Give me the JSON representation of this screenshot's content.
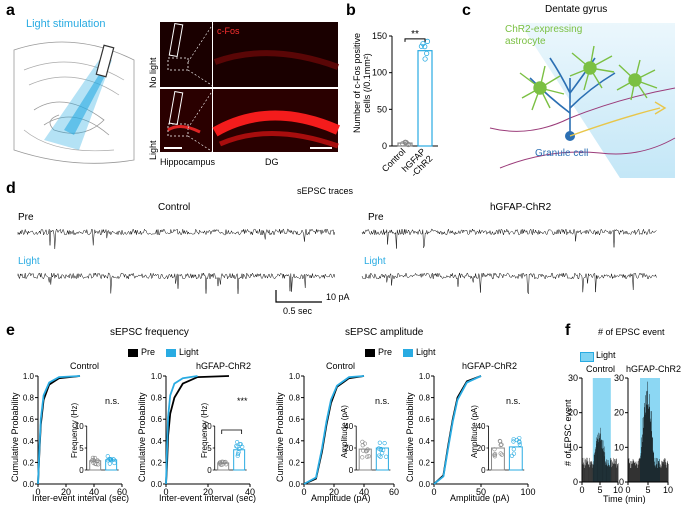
{
  "panels": {
    "a": "a",
    "b": "b",
    "c": "c",
    "d": "d",
    "e": "e",
    "f": "f"
  },
  "panel_a": {
    "stim_label": "Light stimulation",
    "row_labels": [
      "No light",
      "Light"
    ],
    "cfos_label": "c-Fos",
    "col_labels": [
      "Hippocampus",
      "DG"
    ]
  },
  "panel_c": {
    "title": "Dentate gyrus",
    "astro_label": "ChR2-expressing astrocyte",
    "granule_label": "Granule cell"
  },
  "panel_d": {
    "title": "sEPSC traces",
    "groups": [
      "Control",
      "hGFAP-ChR2"
    ],
    "pre": "Pre",
    "light": "Light",
    "scale_y": "10 pA",
    "scale_x": "0.5 sec"
  },
  "panel_e": {
    "freq_title": "sEPSC frequency",
    "amp_title": "sEPSC amplitude",
    "legend_pre": "Pre",
    "legend_light": "Light",
    "cum_ylabel": "Cumulative Probability",
    "sub_titles": [
      "Control",
      "hGFAP-ChR2",
      "Control",
      "hGFAP-ChR2"
    ],
    "freq_xlabel": "Inter-event interval (sec)",
    "amp_xlabel": "Amplitude (pA)",
    "inset_freq_ylabel": "Frequency (Hz)",
    "inset_amp_ylabel": "Amplitude (pA)",
    "sig": [
      "n.s.",
      "***",
      "n.s.",
      "n.s."
    ]
  },
  "panel_f": {
    "title": "# of EPSC event",
    "legend_light": "Light",
    "groups": [
      "Control",
      "hGFAP-ChR2"
    ],
    "ylabel": "# of EPSC event",
    "xlabel": "Time (min)"
  },
  "colors": {
    "light_blue": "#29abe2",
    "green": "#7bc043",
    "red": "#e8202a",
    "purple": "#9b3c7a"
  },
  "chart_data": [
    {
      "type": "bar",
      "id": "b",
      "categories": [
        "Control",
        "hGFAP-ChR2"
      ],
      "values": [
        4,
        130
      ],
      "ylabel": "Number of c-Fos positive cells (/0.1mm²)",
      "ylim": [
        0,
        150
      ],
      "yticks": [
        0,
        50,
        100,
        150
      ],
      "sig": "**"
    },
    {
      "type": "line",
      "id": "e1",
      "title": "Control",
      "xlim": [
        0,
        60
      ],
      "xticks": [
        0,
        20,
        40,
        60
      ],
      "ylim": [
        0,
        1
      ],
      "yticks": [
        0,
        0.2,
        0.4,
        0.6,
        0.8,
        1.0
      ],
      "series": [
        {
          "name": "Pre",
          "points": [
            [
              0,
              0
            ],
            [
              1,
              0.3
            ],
            [
              2,
              0.55
            ],
            [
              4,
              0.78
            ],
            [
              8,
              0.92
            ],
            [
              15,
              0.98
            ],
            [
              30,
              1
            ]
          ]
        },
        {
          "name": "Light",
          "points": [
            [
              0,
              0
            ],
            [
              1,
              0.33
            ],
            [
              2,
              0.6
            ],
            [
              4,
              0.82
            ],
            [
              8,
              0.94
            ],
            [
              15,
              0.99
            ],
            [
              30,
              1
            ]
          ]
        }
      ],
      "inset": {
        "ylim": [
          0,
          10
        ],
        "yticks": [
          0,
          5,
          10
        ],
        "values": [
          2.1,
          2.3
        ]
      }
    },
    {
      "type": "line",
      "id": "e2",
      "title": "hGFAP-ChR2",
      "xlim": [
        0,
        40
      ],
      "xticks": [
        0,
        20,
        40
      ],
      "ylim": [
        0,
        1
      ],
      "yticks": [
        0,
        0.2,
        0.4,
        0.6,
        0.8,
        1.0
      ],
      "series": [
        {
          "name": "Pre",
          "points": [
            [
              0,
              0
            ],
            [
              0.5,
              0.2
            ],
            [
              1,
              0.45
            ],
            [
              2,
              0.65
            ],
            [
              4,
              0.8
            ],
            [
              8,
              0.93
            ],
            [
              15,
              0.99
            ],
            [
              30,
              1
            ]
          ]
        },
        {
          "name": "Light",
          "points": [
            [
              0,
              0
            ],
            [
              0.5,
              0.35
            ],
            [
              1,
              0.62
            ],
            [
              2,
              0.82
            ],
            [
              4,
              0.93
            ],
            [
              8,
              0.98
            ],
            [
              15,
              1
            ]
          ]
        }
      ],
      "inset": {
        "ylim": [
          0,
          10
        ],
        "yticks": [
          0,
          5,
          10
        ],
        "values": [
          1.6,
          4.6
        ]
      }
    },
    {
      "type": "line",
      "id": "e3",
      "title": "Control",
      "xlim": [
        0,
        60
      ],
      "xticks": [
        0,
        20,
        40,
        60
      ],
      "ylim": [
        0,
        1
      ],
      "yticks": [
        0,
        0.2,
        0.4,
        0.6,
        0.8,
        1.0
      ],
      "series": [
        {
          "name": "Pre",
          "points": [
            [
              0,
              0
            ],
            [
              8,
              0.05
            ],
            [
              12,
              0.3
            ],
            [
              15,
              0.55
            ],
            [
              18,
              0.75
            ],
            [
              22,
              0.9
            ],
            [
              30,
              0.98
            ],
            [
              40,
              1
            ]
          ]
        },
        {
          "name": "Light",
          "points": [
            [
              0,
              0
            ],
            [
              8,
              0.06
            ],
            [
              12,
              0.33
            ],
            [
              15,
              0.58
            ],
            [
              18,
              0.78
            ],
            [
              22,
              0.91
            ],
            [
              30,
              0.99
            ],
            [
              40,
              1
            ]
          ]
        }
      ],
      "inset": {
        "ylim": [
          0,
          40
        ],
        "yticks": [
          0,
          20,
          40
        ],
        "values": [
          19,
          20
        ]
      }
    },
    {
      "type": "line",
      "id": "e4",
      "title": "hGFAP-ChR2",
      "xlim": [
        0,
        100
      ],
      "xticks": [
        0,
        50,
        100
      ],
      "ylim": [
        0,
        1
      ],
      "yticks": [
        0,
        0.2,
        0.4,
        0.6,
        0.8,
        1.0
      ],
      "series": [
        {
          "name": "Pre",
          "points": [
            [
              0,
              0
            ],
            [
              10,
              0.08
            ],
            [
              15,
              0.35
            ],
            [
              20,
              0.6
            ],
            [
              25,
              0.8
            ],
            [
              35,
              0.95
            ],
            [
              50,
              1
            ]
          ]
        },
        {
          "name": "Light",
          "points": [
            [
              0,
              0
            ],
            [
              10,
              0.07
            ],
            [
              15,
              0.33
            ],
            [
              20,
              0.58
            ],
            [
              25,
              0.78
            ],
            [
              35,
              0.94
            ],
            [
              50,
              1
            ]
          ]
        }
      ],
      "inset": {
        "ylim": [
          0,
          40
        ],
        "yticks": [
          0,
          20,
          40
        ],
        "values": [
          20,
          21
        ]
      }
    },
    {
      "type": "bar",
      "id": "f1",
      "title": "Control",
      "xlim": [
        0,
        10
      ],
      "xticks": [
        0,
        5,
        10
      ],
      "ylim": [
        0,
        30
      ],
      "yticks": [
        0,
        10,
        20,
        30
      ],
      "light_window": [
        3,
        8
      ]
    },
    {
      "type": "bar",
      "id": "f2",
      "title": "hGFAP-ChR2",
      "xlim": [
        0,
        10
      ],
      "xticks": [
        0,
        5,
        10
      ],
      "ylim": [
        0,
        30
      ],
      "yticks": [
        0,
        10,
        20,
        30
      ],
      "light_window": [
        3,
        8
      ]
    }
  ]
}
